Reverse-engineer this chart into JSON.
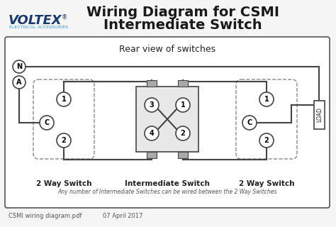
{
  "title_line1": "Wiring Diagram for CSMI",
  "title_line2": "Intermediate Switch",
  "voltex_text": "VOLTEX",
  "voltex_sub": "ELECTRICAL ACCESSORIES",
  "diagram_title": "Rear view of switches",
  "label_2way_left": "2 Way Switch",
  "label_intermediate": "Intermediate Switch",
  "label_2way_right": "2 Way Switch",
  "footnote_left": "CSMI wiring diagram.pdf",
  "footnote_right": "07 April 2017",
  "caption": "Any number of Intermediate Switches can be wired between the 2 Way Switches",
  "bg_color": "#f5f5f5",
  "line_color": "#444444",
  "dashed_color": "#888888",
  "voltex_color": "#1a3a6b",
  "voltex_sub_color": "#3a9ad9",
  "title_color": "#1a1a1a",
  "box_edge_color": "#555555",
  "tab_color": "#aaaaaa",
  "int_box_color": "#e8e8e8"
}
